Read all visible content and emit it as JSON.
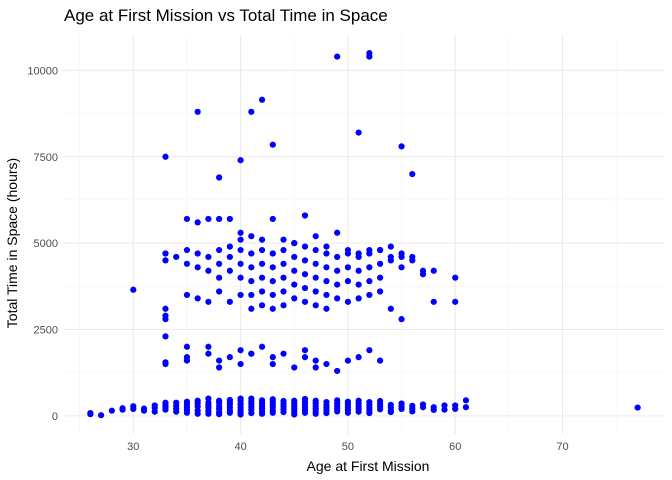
{
  "chart_data": {
    "type": "scatter",
    "title": "Age at First Mission vs Total Time in Space",
    "xlabel": "Age at First Mission",
    "ylabel": "Total Time in Space (hours)",
    "xlim": [
      23.45,
      79.55
    ],
    "ylim": [
      -525,
      11025
    ],
    "x_ticks": [
      30,
      40,
      50,
      60,
      70
    ],
    "y_ticks": [
      0,
      2500,
      5000,
      7500,
      10000
    ],
    "x_tick_labels": [
      "30",
      "40",
      "50",
      "60",
      "70"
    ],
    "y_tick_labels": [
      "0",
      "2500",
      "5000",
      "7500",
      "10000"
    ],
    "grid": true,
    "point_color": "#0000ff",
    "series": [
      {
        "x": [
          26,
          26,
          27,
          28,
          29,
          29,
          30,
          30,
          31,
          31,
          32,
          32,
          32,
          33,
          33,
          33,
          33,
          34,
          34,
          34,
          34,
          35,
          35,
          35,
          35,
          35,
          36,
          36,
          36,
          36,
          36,
          37,
          37,
          37,
          37,
          37,
          37,
          38,
          38,
          38,
          38,
          38,
          38,
          39,
          39,
          39,
          39,
          39,
          39,
          40,
          40,
          40,
          40,
          40,
          40,
          40,
          41,
          41,
          41,
          41,
          41,
          41,
          42,
          42,
          42,
          42,
          42,
          42,
          43,
          43,
          43,
          43,
          43,
          43,
          44,
          44,
          44,
          44,
          44,
          45,
          45,
          45,
          45,
          45,
          45,
          46,
          46,
          46,
          46,
          46,
          46,
          47,
          47,
          47,
          47,
          47,
          47,
          48,
          48,
          48,
          48,
          48,
          49,
          49,
          49,
          49,
          49,
          50,
          50,
          50,
          50,
          50,
          51,
          51,
          51,
          51,
          51,
          52,
          52,
          52,
          52,
          52,
          53,
          53,
          53,
          53,
          54,
          54,
          54,
          54,
          55,
          55,
          55,
          56,
          56,
          56,
          57,
          57,
          58,
          58,
          59,
          59,
          60,
          60,
          61,
          61,
          77,
          33,
          33,
          33,
          33,
          33,
          34,
          35,
          35,
          35,
          36,
          36,
          36,
          37,
          37,
          37,
          38,
          38,
          38,
          38,
          39,
          39,
          39,
          39,
          40,
          40,
          40,
          40,
          40,
          41,
          41,
          41,
          41,
          41,
          42,
          42,
          42,
          42,
          42,
          43,
          43,
          43,
          43,
          43,
          44,
          44,
          44,
          44,
          44,
          45,
          45,
          45,
          45,
          45,
          46,
          46,
          46,
          46,
          46,
          47,
          47,
          47,
          47,
          47,
          48,
          48,
          48,
          48,
          48,
          49,
          49,
          49,
          49,
          50,
          50,
          50,
          50,
          51,
          51,
          51,
          51,
          52,
          52,
          52,
          52,
          53,
          53,
          53,
          53,
          54,
          54,
          54,
          55,
          55,
          55,
          56,
          56,
          57,
          57,
          58,
          58,
          60,
          60,
          30,
          35,
          35,
          37,
          37,
          38,
          39,
          40,
          40,
          41,
          42,
          43,
          44,
          45,
          46,
          47,
          48,
          49,
          50,
          51,
          52,
          53,
          33,
          33,
          33,
          35,
          36,
          37,
          38,
          39,
          40,
          41,
          42,
          43,
          44,
          45,
          46,
          47,
          48,
          49,
          50,
          51,
          52,
          53,
          54,
          55,
          33,
          36,
          38,
          40,
          41,
          42,
          43,
          49,
          51,
          52,
          52,
          55,
          56,
          35,
          38,
          41,
          43,
          46,
          47
        ],
        "y": [
          50,
          80,
          20,
          150,
          180,
          220,
          200,
          280,
          150,
          210,
          120,
          230,
          300,
          250,
          180,
          300,
          380,
          200,
          290,
          380,
          120,
          170,
          250,
          330,
          410,
          90,
          150,
          270,
          360,
          440,
          60,
          230,
          300,
          380,
          140,
          500,
          60,
          200,
          280,
          380,
          440,
          110,
          50,
          160,
          240,
          330,
          400,
          90,
          460,
          170,
          250,
          340,
          430,
          100,
          500,
          40,
          180,
          260,
          350,
          420,
          80,
          500,
          210,
          290,
          370,
          450,
          130,
          60,
          160,
          250,
          330,
          410,
          90,
          480,
          190,
          270,
          350,
          430,
          110,
          200,
          280,
          360,
          440,
          120,
          40,
          170,
          250,
          330,
          410,
          90,
          490,
          200,
          280,
          360,
          130,
          440,
          60,
          160,
          240,
          320,
          400,
          80,
          210,
          290,
          370,
          450,
          130,
          170,
          250,
          330,
          410,
          90,
          200,
          280,
          360,
          440,
          120,
          160,
          240,
          320,
          400,
          80,
          190,
          270,
          350,
          430,
          160,
          240,
          320,
          110,
          200,
          280,
          360,
          210,
          290,
          130,
          250,
          330,
          170,
          250,
          300,
          180,
          300,
          200,
          450,
          250,
          240,
          4700,
          4500,
          3100,
          2900,
          2800,
          4600,
          4800,
          4400,
          3500,
          4300,
          3400,
          4700,
          4600,
          4200,
          3300,
          4800,
          4400,
          4000,
          3600,
          4900,
          4600,
          4200,
          3300,
          5100,
          4800,
          4400,
          4000,
          3500,
          4700,
          4300,
          3900,
          3500,
          3100,
          4800,
          4400,
          4000,
          3600,
          3200,
          4700,
          4300,
          3900,
          3500,
          3100,
          4800,
          4400,
          4000,
          3600,
          3200,
          5000,
          4600,
          4200,
          3800,
          3400,
          4900,
          4500,
          4100,
          3700,
          3300,
          4800,
          4400,
          4000,
          3600,
          3200,
          4700,
          4300,
          3900,
          3500,
          3100,
          4600,
          4200,
          3800,
          3400,
          4700,
          4300,
          3900,
          3300,
          4600,
          4200,
          3800,
          3400,
          4700,
          4300,
          3900,
          3500,
          4800,
          4400,
          4000,
          3600,
          4900,
          4500,
          3100,
          4700,
          4300,
          2800,
          4600,
          4500,
          4100,
          4200,
          4200,
          3300,
          4000,
          3300,
          3650,
          1700,
          2000,
          1800,
          2000,
          1600,
          1700,
          1900,
          1500,
          1800,
          2000,
          1700,
          1800,
          1400,
          1900,
          1600,
          1500,
          1300,
          1600,
          1700,
          1900,
          1600,
          1500,
          1550,
          2300,
          5700,
          5600,
          5700,
          5700,
          5700,
          5300,
          5200,
          5100,
          5700,
          5100,
          5000,
          5800,
          5200,
          4900,
          5300,
          4800,
          4700,
          4800,
          4800,
          4600,
          4600,
          7500,
          8800,
          6900,
          7400,
          8800,
          9150,
          7850,
          10400,
          8200,
          10500,
          10400,
          7800,
          7000,
          1600,
          1400,
          1800,
          1500,
          1700,
          1400
        ]
      }
    ]
  }
}
